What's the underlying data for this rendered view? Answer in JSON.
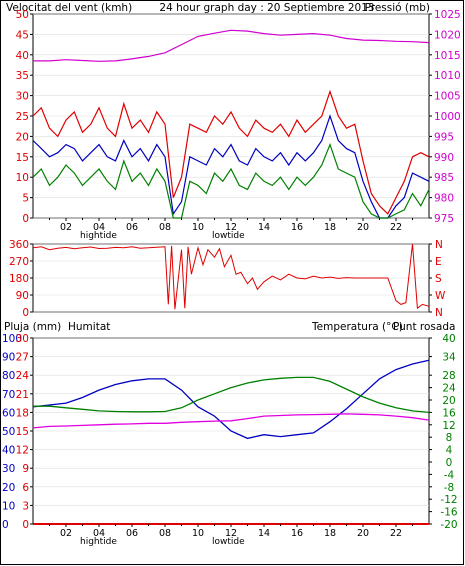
{
  "colors": {
    "wind_max": "#e00000",
    "wind_avg": "#0000c0",
    "wind_min": "#008000",
    "pressure": "#d000d0",
    "direction": "#e00000",
    "rain": "#e00000",
    "humidity": "#0000c0",
    "temperature": "#008000",
    "dew_point": "#e000e0",
    "title": "#202020",
    "axis_text": "#000000"
  },
  "header": {
    "title": "24 hour graph day : 20 Septiembre 2013",
    "wind_label": "Velocitat del vent (kmh)",
    "pressure_label": "Pressió (mb)"
  },
  "footer": {
    "hightide": "hightide",
    "lowtide": "lowtide"
  },
  "panel3_labels": {
    "rain": "Pluja (mm)",
    "humidity": "Humitat",
    "temperature": "Temperatura (°C)",
    "dew": "Punt rosada"
  },
  "chart_data": [
    {
      "type": "line",
      "title": "24 hour graph day : 20 Septiembre 2013",
      "x_tick_labels": [
        "02",
        "04",
        "06",
        "08",
        "10",
        "12",
        "14",
        "16",
        "18",
        "20",
        "22"
      ],
      "x_range_hours": [
        0,
        24
      ],
      "left_axis": {
        "label": "Velocitat del vent (kmh)",
        "ylim": [
          0,
          50
        ],
        "ticks": [
          0,
          5,
          10,
          15,
          20,
          25,
          30,
          35,
          40,
          45,
          50
        ]
      },
      "right_axis": {
        "label": "Pressió (mb)",
        "ylim": [
          975,
          1025
        ],
        "ticks": [
          975,
          980,
          985,
          990,
          995,
          1000,
          1005,
          1010,
          1015,
          1020,
          1025
        ]
      },
      "series": [
        {
          "name": "",
          "axis": "left",
          "color_key": "wind_max",
          "x": [
            0,
            0.5,
            1,
            1.5,
            2,
            2.5,
            3,
            3.5,
            4,
            4.5,
            5,
            5.5,
            6,
            6.5,
            7,
            7.5,
            8,
            8.5,
            9,
            9.5,
            10,
            10.5,
            11,
            11.5,
            12,
            12.5,
            13,
            13.5,
            14,
            14.5,
            15,
            15.5,
            16,
            16.5,
            17,
            17.5,
            18,
            18.5,
            19,
            19.5,
            20,
            20.5,
            21,
            21.5,
            22,
            22.5,
            23,
            23.5,
            24
          ],
          "y": [
            25,
            27,
            22,
            20,
            24,
            26,
            21,
            23,
            27,
            22,
            20,
            28,
            22,
            24,
            21,
            26,
            23,
            5,
            10,
            23,
            22,
            21,
            25,
            23,
            26,
            22,
            20,
            24,
            22,
            21,
            23,
            20,
            24,
            21,
            23,
            25,
            31,
            25,
            22,
            23,
            14,
            6,
            3,
            1,
            5,
            9,
            15,
            16,
            15
          ]
        },
        {
          "name": "",
          "axis": "left",
          "color_key": "wind_avg",
          "x": [
            0,
            0.5,
            1,
            1.5,
            2,
            2.5,
            3,
            3.5,
            4,
            4.5,
            5,
            5.5,
            6,
            6.5,
            7,
            7.5,
            8,
            8.5,
            9,
            9.5,
            10,
            10.5,
            11,
            11.5,
            12,
            12.5,
            13,
            13.5,
            14,
            14.5,
            15,
            15.5,
            16,
            16.5,
            17,
            17.5,
            18,
            18.5,
            19,
            19.5,
            20,
            20.5,
            21,
            21.5,
            22,
            22.5,
            23,
            23.5,
            24
          ],
          "y": [
            19,
            17,
            15,
            16,
            18,
            17,
            14,
            16,
            18,
            15,
            14,
            19,
            15,
            17,
            14,
            18,
            15,
            1,
            4,
            15,
            14,
            13,
            17,
            15,
            18,
            14,
            13,
            17,
            15,
            14,
            16,
            13,
            16,
            14,
            16,
            19,
            25,
            19,
            17,
            16,
            9,
            4,
            0,
            0,
            3,
            5,
            11,
            10,
            9
          ]
        },
        {
          "name": "",
          "axis": "left",
          "color_key": "wind_min",
          "x": [
            0,
            0.5,
            1,
            1.5,
            2,
            2.5,
            3,
            3.5,
            4,
            4.5,
            5,
            5.5,
            6,
            6.5,
            7,
            7.5,
            8,
            8.5,
            9,
            9.5,
            10,
            10.5,
            11,
            11.5,
            12,
            12.5,
            13,
            13.5,
            14,
            14.5,
            15,
            15.5,
            16,
            16.5,
            17,
            17.5,
            18,
            18.5,
            19,
            19.5,
            20,
            20.5,
            21,
            21.5,
            22,
            22.5,
            23,
            23.5,
            24
          ],
          "y": [
            10,
            12,
            8,
            10,
            13,
            11,
            8,
            10,
            12,
            9,
            7,
            14,
            9,
            11,
            8,
            12,
            9,
            0,
            0,
            9,
            8,
            6,
            11,
            9,
            12,
            8,
            7,
            11,
            9,
            8,
            10,
            7,
            10,
            8,
            10,
            13,
            18,
            12,
            11,
            10,
            4,
            1,
            0,
            0,
            1,
            2,
            6,
            3,
            7
          ]
        },
        {
          "name": "",
          "axis": "right",
          "color_key": "pressure",
          "x": [
            0,
            1,
            2,
            3,
            4,
            5,
            6,
            7,
            8,
            9,
            10,
            11,
            12,
            13,
            14,
            15,
            16,
            17,
            18,
            19,
            20,
            21,
            22,
            23,
            24
          ],
          "y": [
            1013.5,
            1013.5,
            1013.8,
            1013.6,
            1013.4,
            1013.5,
            1014,
            1014.6,
            1015.5,
            1017.5,
            1019.5,
            1020.3,
            1021,
            1020.8,
            1020.2,
            1019.8,
            1020,
            1020.2,
            1019.8,
            1019,
            1018.6,
            1018.5,
            1018.3,
            1018.2,
            1018
          ]
        }
      ]
    },
    {
      "type": "scatter",
      "y_tick_labels": [
        "0",
        "90",
        "180",
        "270",
        "360"
      ],
      "y_right_labels": [
        "N",
        "W",
        "S",
        "E",
        "N"
      ],
      "ylim": [
        0,
        360
      ],
      "series": [
        {
          "name": "",
          "color_key": "direction",
          "x": [
            0,
            0.5,
            1,
            1.5,
            2,
            2.5,
            3,
            3.5,
            4,
            4.5,
            5,
            5.5,
            6,
            6.5,
            7,
            7.5,
            8,
            8.2,
            8.4,
            8.6,
            9,
            9.2,
            9.4,
            9.6,
            10,
            10.3,
            10.6,
            11,
            11.3,
            11.6,
            12,
            12.3,
            12.6,
            13,
            13.3,
            13.6,
            14,
            14.5,
            15,
            15.5,
            16,
            16.5,
            17,
            17.5,
            18,
            18.5,
            19,
            19.5,
            20,
            20.5,
            21,
            21.5,
            22,
            22.3,
            22.6,
            23,
            23.3,
            23.6,
            24
          ],
          "y": [
            340,
            345,
            330,
            338,
            342,
            335,
            340,
            344,
            336,
            338,
            342,
            340,
            345,
            338,
            340,
            343,
            345,
            40,
            350,
            15,
            330,
            20,
            345,
            200,
            340,
            250,
            330,
            290,
            335,
            240,
            300,
            200,
            210,
            150,
            180,
            120,
            160,
            190,
            170,
            200,
            180,
            175,
            190,
            180,
            185,
            178,
            182,
            180,
            180,
            180,
            180,
            180,
            60,
            40,
            50,
            360,
            20,
            40,
            30
          ]
        }
      ]
    },
    {
      "type": "line",
      "x_tick_labels": [
        "02",
        "04",
        "06",
        "08",
        "10",
        "12",
        "14",
        "16",
        "18",
        "20",
        "22"
      ],
      "x_range_hours": [
        0,
        24
      ],
      "left_axis_outer": {
        "label": "Pluja (mm)",
        "ticks": [
          0,
          10,
          20,
          30,
          40,
          50,
          60,
          70,
          80,
          90,
          100
        ]
      },
      "left_axis_inner": {
        "ticks": [
          0,
          3,
          6,
          9,
          12,
          15,
          18,
          21,
          24,
          27,
          30
        ]
      },
      "right_axis": {
        "ylim": [
          -20,
          40
        ],
        "ticks": [
          -20,
          -16,
          -12,
          -8,
          -4,
          0,
          4,
          8,
          12,
          16,
          20,
          24,
          28,
          34,
          40
        ]
      },
      "series": [
        {
          "name": "Pluja (mm)",
          "axis": "left",
          "color_key": "rain",
          "x": [
            0,
            24
          ],
          "y": [
            0,
            0
          ]
        },
        {
          "name": "Humitat",
          "axis": "left",
          "color_key": "humidity",
          "x": [
            0,
            1,
            2,
            3,
            4,
            5,
            6,
            7,
            8,
            9,
            10,
            11,
            12,
            13,
            14,
            15,
            16,
            17,
            18,
            19,
            20,
            21,
            22,
            23,
            24
          ],
          "y": [
            63,
            64,
            65,
            68,
            72,
            75,
            77,
            78,
            78,
            72,
            63,
            58,
            50,
            46,
            48,
            47,
            48,
            49,
            55,
            62,
            70,
            78,
            83,
            86,
            88
          ]
        },
        {
          "name": "Temperatura (°C)",
          "axis": "right",
          "color_key": "temperature",
          "x": [
            0,
            1,
            2,
            3,
            4,
            5,
            6,
            7,
            8,
            9,
            10,
            11,
            12,
            13,
            14,
            15,
            16,
            17,
            18,
            19,
            20,
            21,
            22,
            23,
            24
          ],
          "y": [
            18,
            18,
            17.5,
            17,
            16.5,
            16.3,
            16.2,
            16.2,
            16.3,
            17.5,
            20,
            22,
            24,
            25.5,
            26.5,
            27,
            27.3,
            27.3,
            26,
            23.5,
            21,
            19,
            17.5,
            16.5,
            16
          ]
        },
        {
          "name": "Punt rosada",
          "axis": "right",
          "color_key": "dew_point",
          "x": [
            0,
            1,
            2,
            3,
            4,
            5,
            6,
            7,
            8,
            9,
            10,
            11,
            12,
            13,
            14,
            15,
            16,
            17,
            18,
            19,
            20,
            21,
            22,
            23,
            24
          ],
          "y": [
            11,
            11.5,
            11.6,
            11.8,
            12,
            12.2,
            12.3,
            12.5,
            12.5,
            12.8,
            13,
            13.2,
            13.3,
            14,
            14.8,
            15,
            15.2,
            15.3,
            15.4,
            15.5,
            15.4,
            15.2,
            14.8,
            14.3,
            13.5
          ]
        }
      ]
    }
  ]
}
